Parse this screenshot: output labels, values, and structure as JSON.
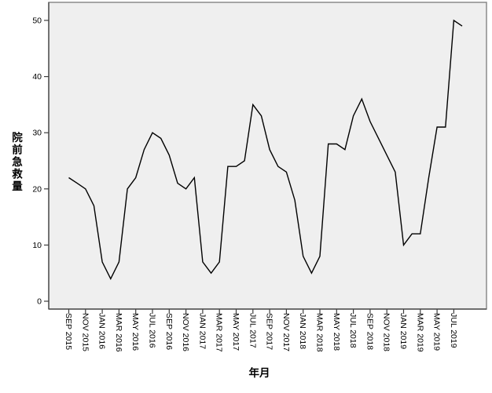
{
  "chart_data": {
    "type": "line",
    "title": "",
    "xlabel": "年月",
    "ylabel": "院前急救量",
    "x_start": "SEP 2015",
    "x_interval": "month",
    "x_tick_labels": [
      "SEP 2015",
      "NOV 2015",
      "JAN 2016",
      "MAR 2016",
      "MAY 2016",
      "JUL 2016",
      "SEP 2016",
      "NOV 2016",
      "JAN 2017",
      "MAR 2017",
      "MAY 2017",
      "JUL 2017",
      "SEP 2017",
      "NOV 2017",
      "JAN 2018",
      "MAR 2018",
      "MAY 2018",
      "JUL 2018",
      "SEP 2018",
      "NOV 2018",
      "JAN 2019",
      "MAR 2019",
      "MAY 2019",
      "JUL 2019"
    ],
    "y_ticks": [
      0,
      10,
      20,
      30,
      40,
      50
    ],
    "ylim": [
      0,
      52
    ],
    "grid": false,
    "legend": "none",
    "series": [
      {
        "name": "院前急救量",
        "values": [
          22,
          21,
          20,
          17,
          7,
          4,
          7,
          20,
          22,
          27,
          30,
          29,
          26,
          21,
          20,
          22,
          7,
          5,
          7,
          24,
          24,
          25,
          35,
          33,
          27,
          24,
          23,
          18,
          8,
          5,
          8,
          28,
          28,
          27,
          33,
          36,
          32,
          29,
          26,
          23,
          10,
          12,
          12,
          22,
          31,
          31,
          50,
          49
        ]
      }
    ],
    "colors": {
      "line": "#000000",
      "plot_bg": "#efefef",
      "frame": "#8a8a8a",
      "axis": "#3f3f3f",
      "tick_label": "#000000"
    }
  }
}
